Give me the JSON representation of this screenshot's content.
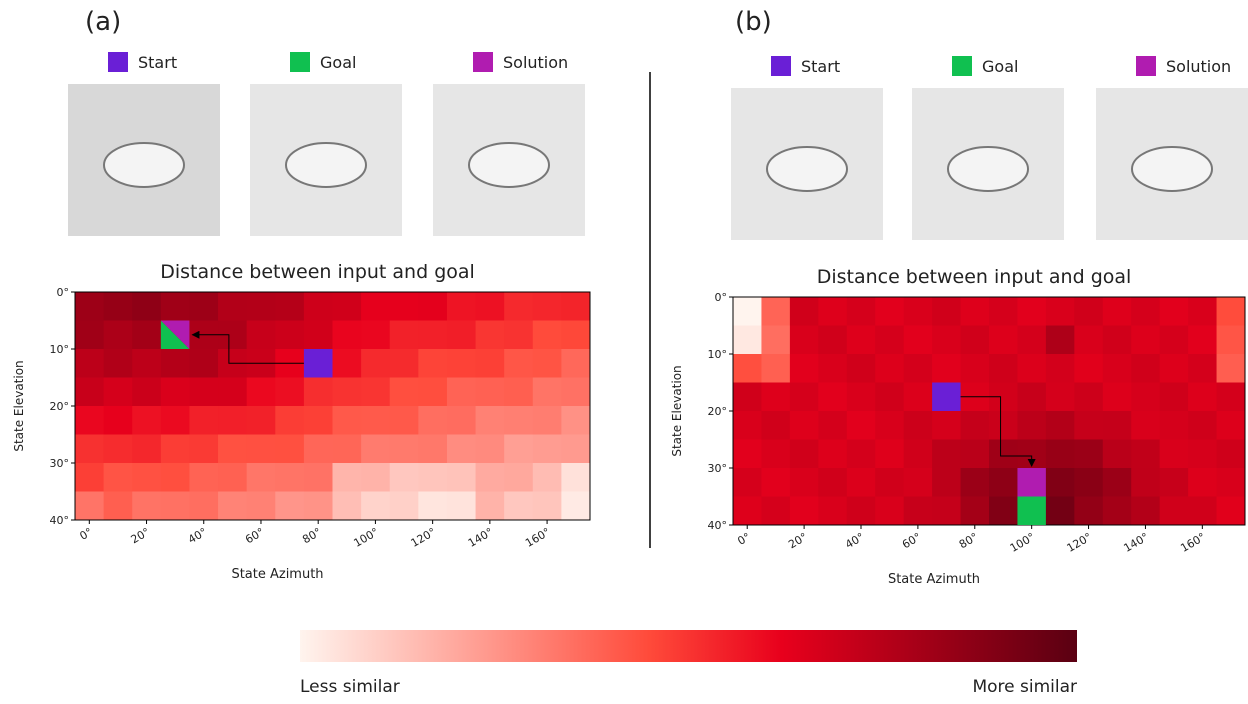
{
  "panels": [
    {
      "label": "(a)",
      "legend": [
        "Start",
        "Goal",
        "Solution"
      ],
      "title": "Distance between input and goal",
      "ylabel": "State Elevation",
      "xlabel": "State Azimuth",
      "yticks": [
        "0°",
        "10°",
        "20°",
        "30°",
        "40°"
      ],
      "xticks": [
        "0°",
        "20°",
        "40°",
        "60°",
        "80°",
        "100°",
        "120°",
        "140°",
        "160°"
      ]
    },
    {
      "label": "(b)",
      "legend": [
        "Start",
        "Goal",
        "Solution"
      ],
      "title": "Distance between input and goal",
      "ylabel": "State Elevation",
      "xlabel": "State Azimuth",
      "yticks": [
        "0°",
        "10°",
        "20°",
        "30°",
        "40°"
      ],
      "xticks": [
        "0°",
        "20°",
        "40°",
        "60°",
        "80°",
        "100°",
        "120°",
        "140°",
        "160°"
      ]
    }
  ],
  "colorbar": {
    "left": "Less similar",
    "right": "More similar"
  }
}
